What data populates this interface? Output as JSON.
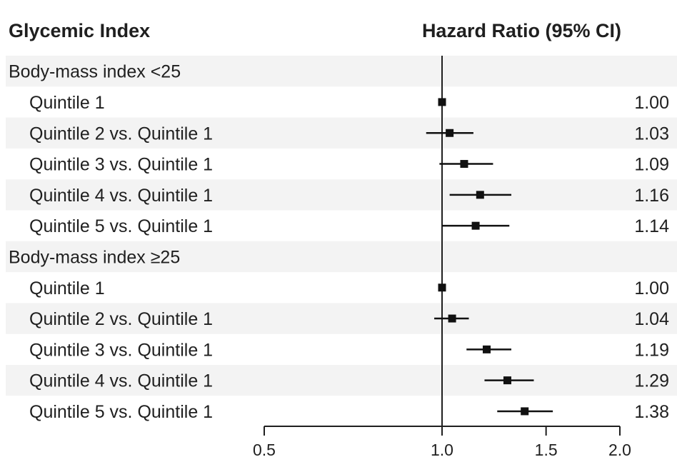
{
  "chart_data": {
    "type": "forest",
    "column_headers": {
      "left": "Glycemic Index",
      "right": "Hazard Ratio (95% CI)"
    },
    "x_axis": {
      "scale": "log",
      "ticks": [
        0.5,
        1.0,
        1.5,
        2.0
      ],
      "tick_labels": [
        "0.5",
        "1.0",
        "1.5",
        "2.0"
      ],
      "range": [
        0.5,
        2.0
      ],
      "reference_line": 1.0
    },
    "groups": [
      {
        "label": "Body-mass index <25",
        "rows": [
          {
            "label": "Quintile 1",
            "hr": 1.0,
            "lo": 1.0,
            "hi": 1.0,
            "hr_label": "1.00"
          },
          {
            "label": "Quintile 2 vs. Quintile 1",
            "hr": 1.03,
            "lo": 0.94,
            "hi": 1.13,
            "hr_label": "1.03"
          },
          {
            "label": "Quintile 3 vs. Quintile 1",
            "hr": 1.09,
            "lo": 0.99,
            "hi": 1.22,
            "hr_label": "1.09"
          },
          {
            "label": "Quintile 4 vs. Quintile 1",
            "hr": 1.16,
            "lo": 1.03,
            "hi": 1.31,
            "hr_label": "1.16"
          },
          {
            "label": "Quintile 5 vs. Quintile 1",
            "hr": 1.14,
            "lo": 1.0,
            "hi": 1.3,
            "hr_label": "1.14"
          }
        ]
      },
      {
        "label": "Body-mass index ≥25",
        "rows": [
          {
            "label": "Quintile 1",
            "hr": 1.0,
            "lo": 1.0,
            "hi": 1.0,
            "hr_label": "1.00"
          },
          {
            "label": "Quintile 2 vs. Quintile 1",
            "hr": 1.04,
            "lo": 0.97,
            "hi": 1.11,
            "hr_label": "1.04"
          },
          {
            "label": "Quintile 3 vs. Quintile 1",
            "hr": 1.19,
            "lo": 1.1,
            "hi": 1.31,
            "hr_label": "1.19"
          },
          {
            "label": "Quintile 4 vs. Quintile 1",
            "hr": 1.29,
            "lo": 1.18,
            "hi": 1.43,
            "hr_label": "1.29"
          },
          {
            "label": "Quintile 5 vs. Quintile 1",
            "hr": 1.38,
            "lo": 1.24,
            "hi": 1.54,
            "hr_label": "1.38"
          }
        ]
      }
    ]
  }
}
